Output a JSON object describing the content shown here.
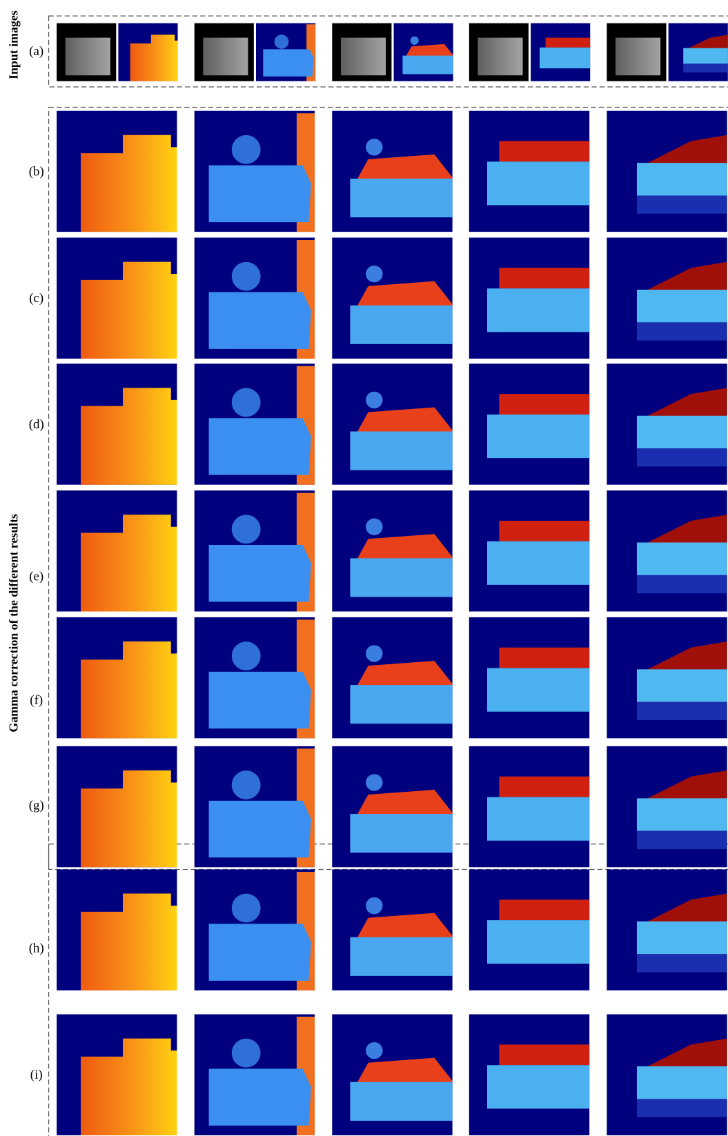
{
  "labels": {
    "input_images": "Input images",
    "gamma": "Gamma correction of the different results",
    "rows": [
      "(a)",
      "(b)",
      "(c)",
      "(d)",
      "(e)",
      "(f)",
      "(g)",
      "(h)",
      "(i)"
    ]
  }
}
